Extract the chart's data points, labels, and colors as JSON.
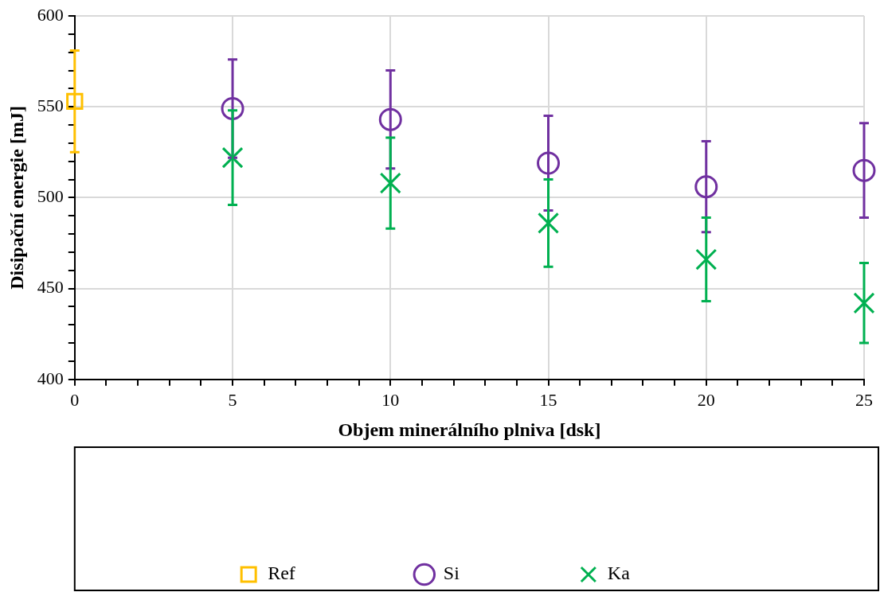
{
  "chart_data": {
    "type": "scatter",
    "xlabel": "Objem minerálního plniva [dsk]",
    "ylabel": "Disipační energie [mJ]",
    "xlim": [
      0,
      25
    ],
    "ylim": [
      400,
      600
    ],
    "xticks": [
      0,
      {
        "value": 1,
        "label": null
      },
      {
        "value": 2,
        "label": null
      },
      {
        "value": 3,
        "label": null
      },
      {
        "value": 4,
        "label": null
      },
      5,
      {
        "value": 6,
        "label": null
      },
      {
        "value": 7,
        "label": null
      },
      {
        "value": 8,
        "label": null
      },
      {
        "value": 9,
        "label": null
      },
      10,
      {
        "value": 11,
        "label": null
      },
      {
        "value": 12,
        "label": null
      },
      {
        "value": 13,
        "label": null
      },
      {
        "value": 14,
        "label": null
      },
      15,
      {
        "value": 16,
        "label": null
      },
      {
        "value": 17,
        "label": null
      },
      {
        "value": 18,
        "label": null
      },
      {
        "value": 19,
        "label": null
      },
      20,
      {
        "value": 21,
        "label": null
      },
      {
        "value": 22,
        "label": null
      },
      {
        "value": 23,
        "label": null
      },
      {
        "value": 24,
        "label": null
      },
      25
    ],
    "yticks": [
      400,
      {
        "value": 410,
        "label": null
      },
      {
        "value": 420,
        "label": null
      },
      {
        "value": 430,
        "label": null
      },
      {
        "value": 440,
        "label": null
      },
      450,
      {
        "value": 460,
        "label": null
      },
      {
        "value": 470,
        "label": null
      },
      {
        "value": 480,
        "label": null
      },
      {
        "value": 490,
        "label": null
      },
      500,
      {
        "value": 510,
        "label": null
      },
      {
        "value": 520,
        "label": null
      },
      {
        "value": 530,
        "label": null
      },
      {
        "value": 540,
        "label": null
      },
      550,
      {
        "value": 560,
        "label": null
      },
      {
        "value": 570,
        "label": null
      },
      {
        "value": 580,
        "label": null
      },
      {
        "value": 590,
        "label": null
      },
      600
    ],
    "grid": true,
    "legend": "bottom",
    "series": [
      {
        "name": "Ref",
        "color": "#ffc000",
        "marker": "square",
        "x": [
          0
        ],
        "values": [
          553
        ],
        "errors": [
          28
        ]
      },
      {
        "name": "Si",
        "color": "#7030a0",
        "marker": "circle",
        "x": [
          5,
          10,
          15,
          20,
          25
        ],
        "values": [
          549,
          543,
          519,
          506,
          515
        ],
        "errors": [
          27,
          27,
          26,
          25,
          26
        ]
      },
      {
        "name": "Ka",
        "color": "#00b050",
        "marker": "cross",
        "x": [
          5,
          10,
          15,
          20,
          25
        ],
        "values": [
          522,
          508,
          486,
          466,
          442
        ],
        "errors": [
          26,
          25,
          24,
          23,
          22
        ]
      }
    ]
  }
}
